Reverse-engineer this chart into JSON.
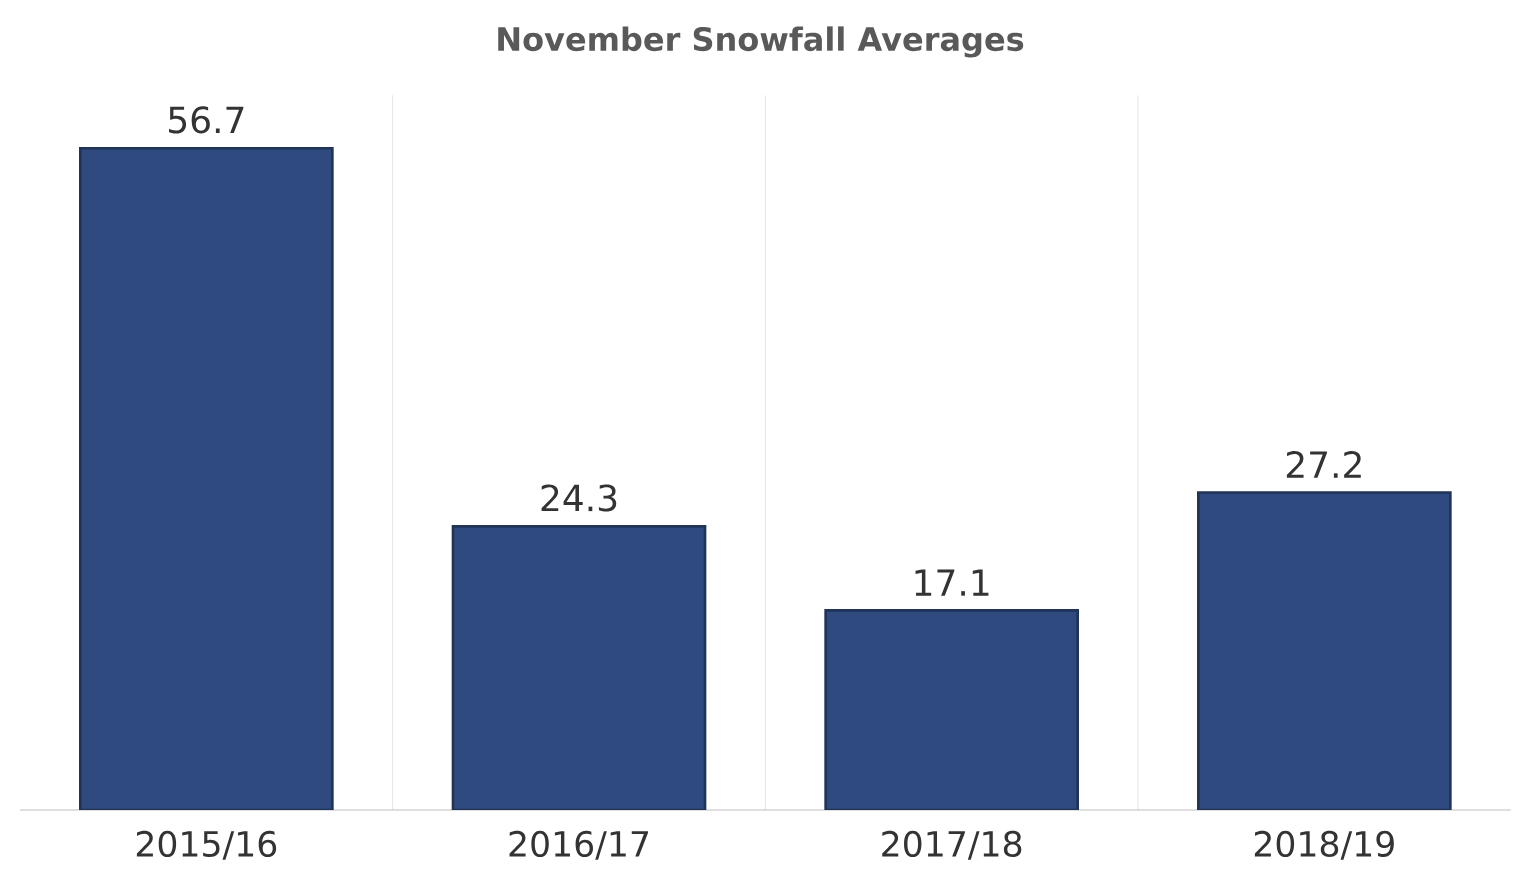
{
  "chart_data": {
    "type": "bar",
    "title": "November Snowfall Averages",
    "categories": [
      "2015/16",
      "2016/17",
      "2017/18",
      "2018/19"
    ],
    "values": [
      56.7,
      24.3,
      17.1,
      27.2
    ],
    "color": "#2e4a7e",
    "tick_labels": "x",
    "grid": "x",
    "data_labels": true
  }
}
